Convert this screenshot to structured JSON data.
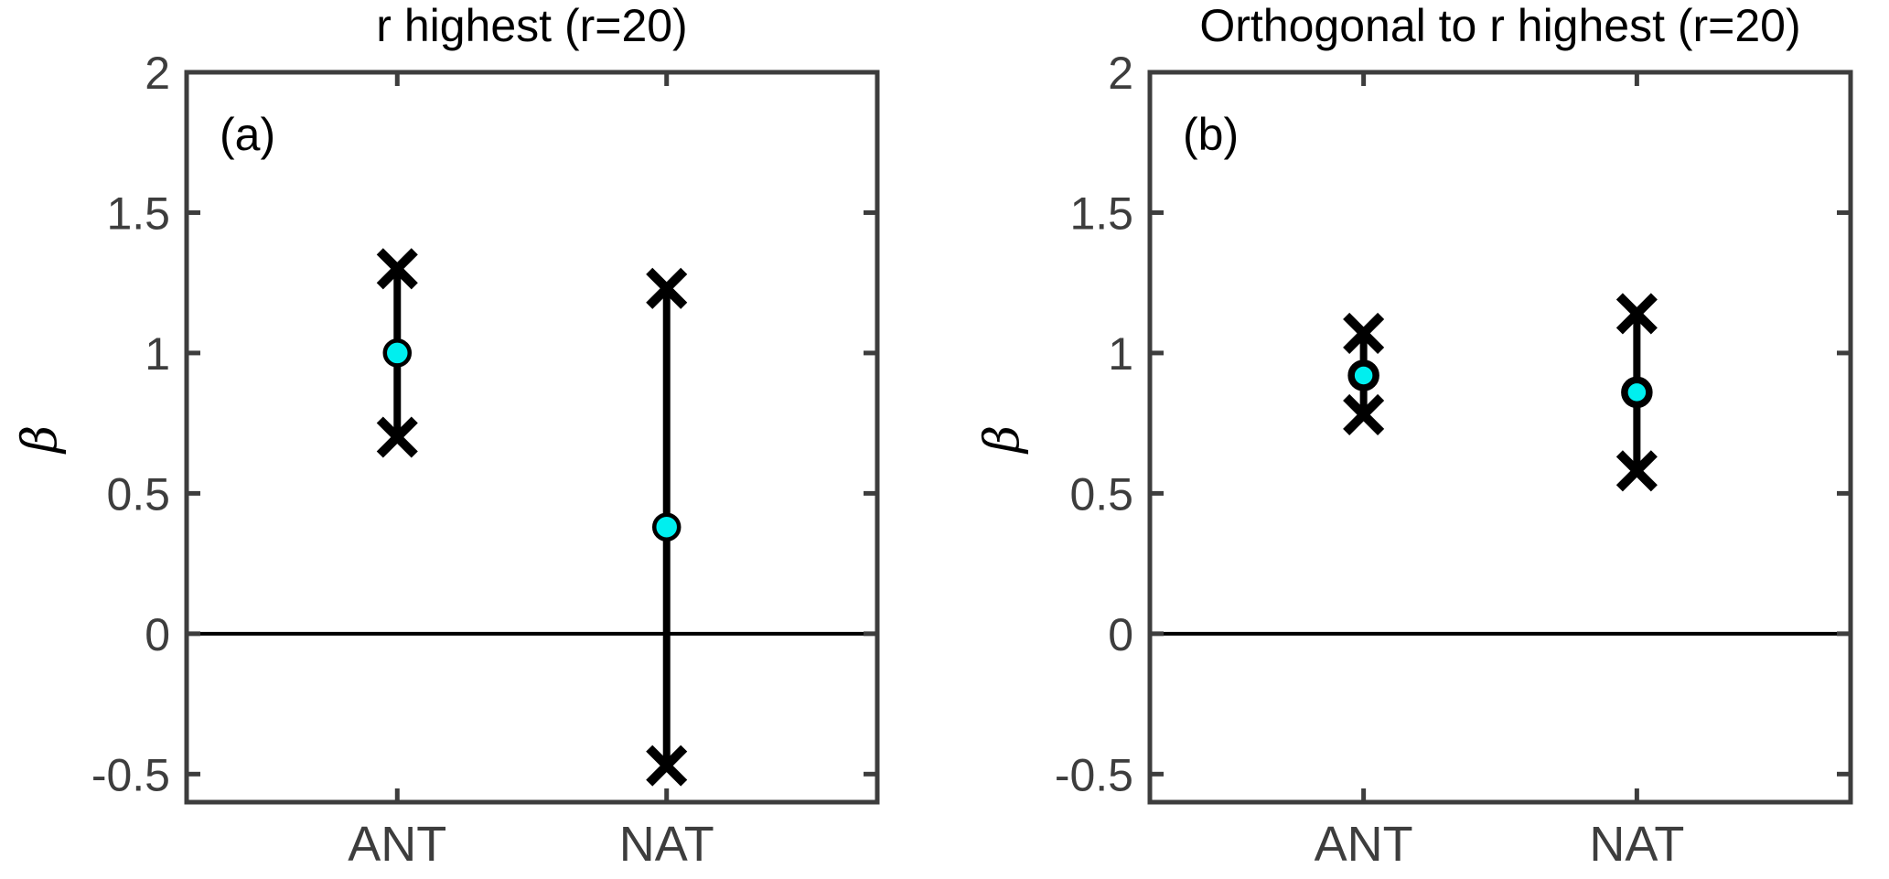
{
  "figure": {
    "background": "#FFFFFF",
    "axis_color": "#3D3D3D",
    "tick_label_color": "#3D3D3D",
    "title_color": "#000000",
    "data_color": "#000000",
    "marker_fill": "#00EFEF",
    "marker_edge": "#000000"
  },
  "chart_data": [
    {
      "type": "errorbar",
      "panel_label": "(a)",
      "title": "r highest (r=20)",
      "ylabel": "β",
      "xlabel": "",
      "categories": [
        "ANT",
        "NAT"
      ],
      "series": [
        {
          "category": "ANT",
          "center": 1.0,
          "upper": 1.3,
          "lower": 0.7
        },
        {
          "category": "NAT",
          "center": 0.38,
          "upper": 1.23,
          "lower": -0.47
        }
      ],
      "ylim": [
        -0.6,
        2
      ],
      "yticks": [
        2,
        1.5,
        1,
        0.5,
        0,
        -0.5
      ],
      "ytick_labels": [
        "2",
        "1.5",
        "1",
        "0.5",
        "0",
        "-0.5"
      ],
      "zero_line": 0,
      "grid": false,
      "legend": "none"
    },
    {
      "type": "errorbar",
      "panel_label": "(b)",
      "title": "Orthogonal to r highest (r=20)",
      "ylabel": "β",
      "xlabel": "",
      "categories": [
        "ANT",
        "NAT"
      ],
      "series": [
        {
          "category": "ANT",
          "center": 0.92,
          "upper": 1.07,
          "lower": 0.78
        },
        {
          "category": "NAT",
          "center": 0.86,
          "upper": 1.14,
          "lower": 0.58
        }
      ],
      "ylim": [
        -0.6,
        2
      ],
      "yticks": [
        2,
        1.5,
        1,
        0.5,
        0,
        -0.5
      ],
      "ytick_labels": [
        "2",
        "1.5",
        "1",
        "0.5",
        "0",
        "-0.5"
      ],
      "zero_line": 0,
      "grid": false,
      "legend": "none"
    }
  ]
}
